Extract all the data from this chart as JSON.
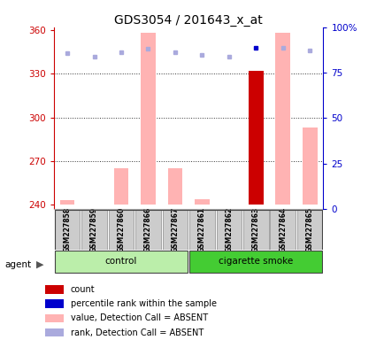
{
  "title": "GDS3054 / 201643_x_at",
  "samples": [
    "GSM227858",
    "GSM227859",
    "GSM227860",
    "GSM227866",
    "GSM227867",
    "GSM227861",
    "GSM227862",
    "GSM227863",
    "GSM227864",
    "GSM227865"
  ],
  "ylim_left": [
    237,
    362
  ],
  "yticks_left": [
    240,
    270,
    300,
    330,
    360
  ],
  "yticks_right": [
    0,
    25,
    50,
    75,
    100
  ],
  "ytick_labels_right": [
    "0",
    "25",
    "50",
    "75",
    "100%"
  ],
  "bar_values": [
    243,
    240,
    265,
    358,
    265,
    244,
    240,
    332,
    358,
    293
  ],
  "bar_colors": [
    "#ffb3b3",
    "#ffb3b3",
    "#ffb3b3",
    "#ffb3b3",
    "#ffb3b3",
    "#ffb3b3",
    "#ffb3b3",
    "#cc0000",
    "#ffb3b3",
    "#ffb3b3"
  ],
  "rank_dots_y": [
    344,
    342,
    345,
    347,
    345,
    343,
    342,
    348,
    348,
    346
  ],
  "rank_dot_colors": [
    "#aaaadd",
    "#aaaadd",
    "#aaaadd",
    "#aaaadd",
    "#aaaadd",
    "#aaaadd",
    "#aaaadd",
    "#0000cc",
    "#aaaadd",
    "#aaaadd"
  ],
  "ybase": 240,
  "bar_width": 0.55,
  "left_axis_color": "#cc0000",
  "right_axis_color": "#0000cc",
  "dotted_line_color": "#333333",
  "legend_items": [
    {
      "color": "#cc0000",
      "label": "count"
    },
    {
      "color": "#0000cc",
      "label": "percentile rank within the sample"
    },
    {
      "color": "#ffb3b3",
      "label": "value, Detection Call = ABSENT"
    },
    {
      "color": "#aaaadd",
      "label": "rank, Detection Call = ABSENT"
    }
  ]
}
